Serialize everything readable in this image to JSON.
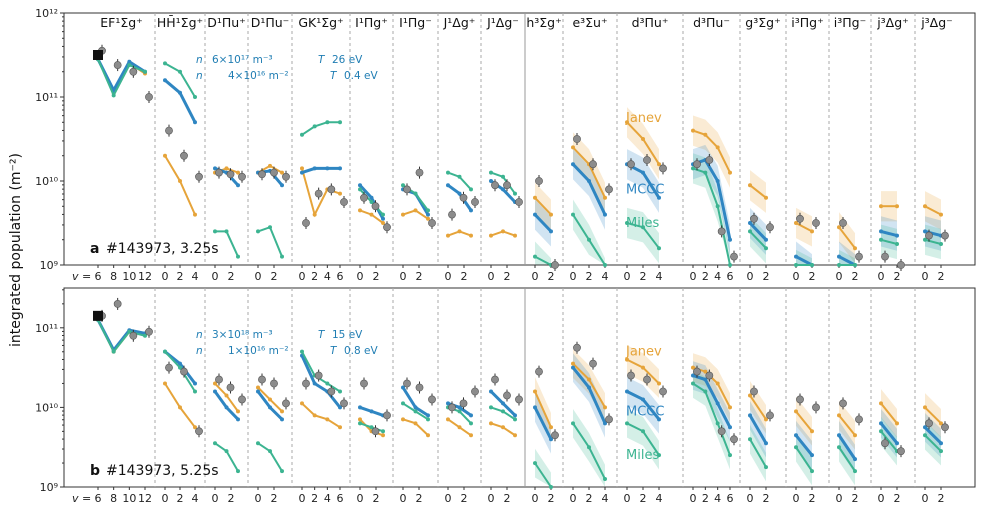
{
  "chart_data": {
    "type": "line",
    "ylabel": "integrated population (m⁻²)",
    "yscale": "log",
    "vlabel": "v =",
    "y_ticks": [
      "10¹²",
      "10¹¹",
      "10¹⁰",
      "10⁹"
    ],
    "y_ticks_bottom": [
      "10¹¹",
      "10¹⁰",
      "10⁹"
    ],
    "states": [
      {
        "name": "EF¹Σg⁺",
        "ticks": [
          "6",
          "8",
          "10",
          "12"
        ]
      },
      {
        "name": "HH̄¹Σg⁺",
        "ticks": [
          "0",
          "2",
          "4"
        ]
      },
      {
        "name": "D¹Πu⁺",
        "ticks": [
          "0",
          "2"
        ]
      },
      {
        "name": "D¹Πu⁻",
        "ticks": [
          "0",
          "2"
        ]
      },
      {
        "name": "GK¹Σg⁺",
        "ticks": [
          "0",
          "2",
          "4",
          "6"
        ]
      },
      {
        "name": "I¹Πg⁺",
        "ticks": [
          "0",
          "2"
        ]
      },
      {
        "name": "I¹Πg⁻",
        "ticks": [
          "0",
          "2"
        ]
      },
      {
        "name": "J¹Δg⁺",
        "ticks": [
          "0",
          "2"
        ]
      },
      {
        "name": "J¹Δg⁻",
        "ticks": [
          "0",
          "2"
        ]
      },
      {
        "name": "h³Σg⁺",
        "ticks": [
          "0",
          "2"
        ]
      },
      {
        "name": "e³Σu⁺",
        "ticks": [
          "0",
          "2",
          "4"
        ]
      },
      {
        "name": "d³Πu⁺",
        "ticks": [
          "0",
          "2",
          "4"
        ]
      },
      {
        "name": "d³Πu⁻",
        "ticks": [
          "0",
          "2",
          "4",
          "6"
        ]
      },
      {
        "name": "g³Σg⁺",
        "ticks": [
          "0",
          "2"
        ]
      },
      {
        "name": "i³Πg⁺",
        "ticks": [
          "0",
          "2"
        ]
      },
      {
        "name": "i³Πg⁻",
        "ticks": [
          "0",
          "2"
        ]
      },
      {
        "name": "j³Δg⁺",
        "ticks": [
          "0",
          "2"
        ]
      },
      {
        "name": "j³Δg⁻",
        "ticks": [
          "0",
          "2"
        ]
      }
    ],
    "series_names": [
      "Janev",
      "MCCC",
      "Miles"
    ],
    "colors": {
      "Janev": "#e6a43a",
      "MCCC": "#2f86c2",
      "Miles": "#3cb491",
      "exp": "#8c8c8c"
    },
    "panels": [
      {
        "label": "a",
        "shot": "#143973, 3.25s",
        "params": {
          "ne": "6×10¹⁷ m⁻³",
          "Te": "26 eV",
          "nL": "4×10¹⁶ m⁻²",
          "Tv": "0.4 eV"
        },
        "ylim": [
          9,
          12
        ]
      },
      {
        "label": "b",
        "shot": "#143973, 5.25s",
        "params": {
          "ne": "3×10¹⁸ m⁻³",
          "Te": "15 eV",
          "nL": "1×10¹⁶ m⁻²",
          "Tv": "0.8 eV"
        },
        "ylim": [
          9,
          11.5
        ]
      }
    ],
    "series": {
      "a": [
        {
          "state": 0,
          "Janev": [
            11.45,
            11.05,
            11.4,
            11.28
          ],
          "MCCC": [
            11.45,
            11.08,
            11.42,
            11.3
          ],
          "Miles": [
            11.45,
            11.02,
            11.38,
            11.3
          ],
          "exp": [
            11.55,
            11.38,
            11.3,
            11.0
          ]
        },
        {
          "state": 1,
          "Janev": [
            10.3,
            10.0,
            9.6
          ],
          "MCCC": [
            11.2,
            11.05,
            10.7
          ],
          "Miles": [
            11.4,
            11.3,
            11.0
          ],
          "exp": [
            10.6,
            10.3,
            10.05
          ]
        },
        {
          "state": 2,
          "Janev": [
            10.1,
            10.15,
            10.1
          ],
          "MCCC": [
            10.15,
            10.1,
            9.95
          ],
          "Miles": [
            9.4,
            9.4,
            9.1
          ],
          "exp": [
            10.1,
            10.08,
            10.05
          ]
        },
        {
          "state": 3,
          "Janev": [
            10.1,
            10.18,
            10.1
          ],
          "MCCC": [
            10.1,
            10.12,
            9.95
          ],
          "Miles": [
            9.4,
            9.45,
            9.1
          ],
          "exp": [
            10.08,
            10.1,
            10.05
          ]
        },
        {
          "state": 4,
          "Janev": [
            10.15,
            9.6,
            9.9,
            9.85
          ],
          "MCCC": [
            10.1,
            10.15,
            10.15,
            10.15
          ],
          "Miles": [
            10.55,
            10.65,
            10.7,
            10.7
          ],
          "exp": [
            9.5,
            9.85,
            9.9,
            9.75
          ]
        },
        {
          "state": 5,
          "Janev": [
            9.65,
            9.6,
            9.5
          ],
          "MCCC": [
            9.95,
            9.8,
            9.55
          ],
          "Miles": [
            9.9,
            9.75,
            9.6
          ],
          "exp": [
            9.8,
            9.7,
            9.45
          ]
        },
        {
          "state": 6,
          "Janev": [
            9.6,
            9.65,
            9.55
          ],
          "MCCC": [
            9.9,
            9.85,
            9.6
          ],
          "Miles": [
            9.95,
            9.85,
            9.65
          ],
          "exp": [
            9.9,
            10.1,
            9.5
          ]
        },
        {
          "state": 7,
          "Janev": [
            9.35,
            9.4,
            9.35
          ],
          "MCCC": [
            9.95,
            9.85,
            9.65
          ],
          "Miles": [
            10.1,
            10.05,
            9.9
          ],
          "exp": [
            9.6,
            9.8,
            9.75
          ]
        },
        {
          "state": 8,
          "Janev": [
            9.35,
            9.4,
            9.35
          ],
          "MCCC": [
            10.0,
            9.9,
            9.75
          ],
          "Miles": [
            10.1,
            10.05,
            9.85
          ],
          "exp": [
            9.95,
            9.95,
            9.75
          ]
        },
        {
          "state": 9,
          "Janev": [
            9.8,
            9.6
          ],
          "MCCC": [
            9.6,
            9.4
          ],
          "Miles": [
            9.1,
            8.9
          ],
          "exp": [
            10.0,
            9.0
          ]
        },
        {
          "state": 10,
          "Janev": [
            10.4,
            10.2,
            9.8
          ],
          "MCCC": [
            10.2,
            10.0,
            9.6
          ],
          "Miles": [
            9.6,
            9.3,
            8.9
          ],
          "exp": [
            10.5,
            10.2,
            9.9
          ]
        },
        {
          "state": 11,
          "Janev": [
            10.7,
            10.5,
            10.2
          ],
          "MCCC": [
            10.2,
            10.1,
            9.8
          ],
          "Miles": [
            9.5,
            9.45,
            9.2
          ],
          "exp": [
            10.2,
            10.25,
            10.15
          ]
        },
        {
          "state": 12,
          "Janev": [
            10.6,
            10.55,
            10.4,
            10.1
          ],
          "MCCC": [
            10.2,
            10.25,
            10.0,
            9.3
          ],
          "Miles": [
            10.15,
            10.1,
            9.7,
            9.0
          ],
          "exp": [
            10.2,
            10.25,
            9.4,
            9.1
          ]
        },
        {
          "state": 13,
          "Janev": [
            9.95,
            9.8
          ],
          "MCCC": [
            9.5,
            9.3
          ],
          "Miles": [
            9.4,
            9.2
          ],
          "exp": [
            9.55,
            9.45
          ]
        },
        {
          "state": 14,
          "Janev": [
            9.5,
            9.4
          ],
          "MCCC": [
            9.1,
            8.95
          ],
          "Miles": [
            9.0,
            8.9
          ],
          "exp": [
            9.55,
            9.5
          ]
        },
        {
          "state": 15,
          "Janev": [
            9.45,
            9.2
          ],
          "MCCC": [
            9.1,
            8.95
          ],
          "Miles": [
            9.0,
            8.9
          ],
          "exp": [
            9.5,
            9.1
          ]
        },
        {
          "state": 16,
          "Janev": [
            9.7,
            9.7
          ],
          "MCCC": [
            9.4,
            9.35
          ],
          "Miles": [
            9.3,
            9.25
          ],
          "exp": [
            9.1,
            8.95
          ]
        },
        {
          "state": 17,
          "Janev": [
            9.7,
            9.6
          ],
          "MCCC": [
            9.4,
            9.35
          ],
          "Miles": [
            9.3,
            9.25
          ],
          "exp": [
            9.35,
            9.35
          ]
        }
      ],
      "b": [
        {
          "state": 0,
          "Janev": [
            11.1,
            10.7,
            10.95,
            10.92
          ],
          "MCCC": [
            11.1,
            10.72,
            10.97,
            10.93
          ],
          "Miles": [
            11.1,
            10.7,
            10.95,
            10.9
          ],
          "exp": [
            11.15,
            11.3,
            10.9,
            10.95
          ]
        },
        {
          "state": 1,
          "Janev": [
            10.3,
            10.0,
            9.75
          ],
          "MCCC": [
            10.7,
            10.55,
            10.3
          ],
          "Miles": [
            10.7,
            10.5,
            10.2
          ],
          "exp": [
            10.5,
            10.45,
            9.7
          ]
        },
        {
          "state": 2,
          "Janev": [
            10.3,
            10.15,
            9.95
          ],
          "MCCC": [
            10.2,
            10.0,
            9.85
          ],
          "Miles": [
            9.55,
            9.45,
            9.2
          ],
          "exp": [
            10.35,
            10.25,
            10.1
          ]
        },
        {
          "state": 3,
          "Janev": [
            10.25,
            10.1,
            9.95
          ],
          "MCCC": [
            10.2,
            10.0,
            9.85
          ],
          "Miles": [
            9.55,
            9.45,
            9.2
          ],
          "exp": [
            10.35,
            10.3,
            10.05
          ]
        },
        {
          "state": 4,
          "Janev": [
            10.05,
            9.9,
            9.85,
            9.75
          ],
          "MCCC": [
            10.65,
            10.3,
            10.2,
            10.0
          ],
          "Miles": [
            10.7,
            10.4,
            10.3,
            10.2
          ],
          "exp": [
            10.3,
            10.4,
            10.2,
            10.05
          ]
        },
        {
          "state": 5,
          "Janev": [
            9.85,
            9.7,
            9.65
          ],
          "MCCC": [
            10.0,
            9.95,
            9.9
          ],
          "Miles": [
            9.8,
            9.75,
            9.7
          ],
          "exp": [
            10.3,
            9.7,
            9.9
          ]
        },
        {
          "state": 6,
          "Janev": [
            9.85,
            9.8,
            9.65
          ],
          "MCCC": [
            10.25,
            10.0,
            9.9
          ],
          "Miles": [
            10.05,
            9.95,
            9.85
          ],
          "exp": [
            10.3,
            10.25,
            10.1
          ]
        },
        {
          "state": 7,
          "Janev": [
            9.85,
            9.75,
            9.65
          ],
          "MCCC": [
            10.05,
            10.0,
            9.9
          ],
          "Miles": [
            10.0,
            9.95,
            9.8
          ],
          "exp": [
            10.0,
            10.05,
            10.2
          ]
        },
        {
          "state": 8,
          "Janev": [
            9.8,
            9.75,
            9.65
          ],
          "MCCC": [
            10.2,
            10.05,
            9.9
          ],
          "Miles": [
            10.0,
            9.95,
            9.85
          ],
          "exp": [
            10.35,
            10.15,
            10.1
          ]
        },
        {
          "state": 9,
          "Janev": [
            10.2,
            9.75
          ],
          "MCCC": [
            10.0,
            9.6
          ],
          "Miles": [
            9.3,
            9.0
          ],
          "exp": [
            10.45,
            9.65
          ]
        },
        {
          "state": 10,
          "Janev": [
            10.55,
            10.35,
            10.0
          ],
          "MCCC": [
            10.5,
            10.25,
            9.8
          ],
          "Miles": [
            9.8,
            9.5,
            9.1
          ],
          "exp": [
            10.75,
            10.55,
            9.85
          ]
        },
        {
          "state": 11,
          "Janev": [
            10.6,
            10.5,
            10.3
          ],
          "MCCC": [
            10.2,
            10.1,
            9.85
          ],
          "Miles": [
            9.8,
            9.7,
            9.4
          ],
          "exp": [
            10.4,
            10.35,
            10.2
          ]
        },
        {
          "state": 12,
          "Janev": [
            10.5,
            10.45,
            10.3,
            10.0
          ],
          "MCCC": [
            10.4,
            10.35,
            10.05,
            9.75
          ],
          "Miles": [
            10.3,
            10.2,
            9.8,
            9.4
          ],
          "exp": [
            10.45,
            10.4,
            9.7,
            9.6
          ]
        },
        {
          "state": 13,
          "Janev": [
            10.15,
            9.85
          ],
          "MCCC": [
            9.9,
            9.55
          ],
          "Miles": [
            9.6,
            9.25
          ],
          "exp": [
            10.2,
            9.9
          ]
        },
        {
          "state": 14,
          "Janev": [
            9.95,
            9.7
          ],
          "MCCC": [
            9.65,
            9.4
          ],
          "Miles": [
            9.5,
            9.2
          ],
          "exp": [
            10.1,
            10.0
          ]
        },
        {
          "state": 15,
          "Janev": [
            9.9,
            9.65
          ],
          "MCCC": [
            9.65,
            9.35
          ],
          "Miles": [
            9.5,
            9.2
          ],
          "exp": [
            10.05,
            9.85
          ]
        },
        {
          "state": 16,
          "Janev": [
            10.05,
            9.8
          ],
          "MCCC": [
            9.8,
            9.55
          ],
          "Miles": [
            9.7,
            9.45
          ],
          "exp": [
            9.55,
            9.45
          ]
        },
        {
          "state": 17,
          "Janev": [
            10.0,
            9.8
          ],
          "MCCC": [
            9.75,
            9.55
          ],
          "Miles": [
            9.65,
            9.45
          ],
          "exp": [
            9.8,
            9.75
          ]
        }
      ]
    }
  }
}
